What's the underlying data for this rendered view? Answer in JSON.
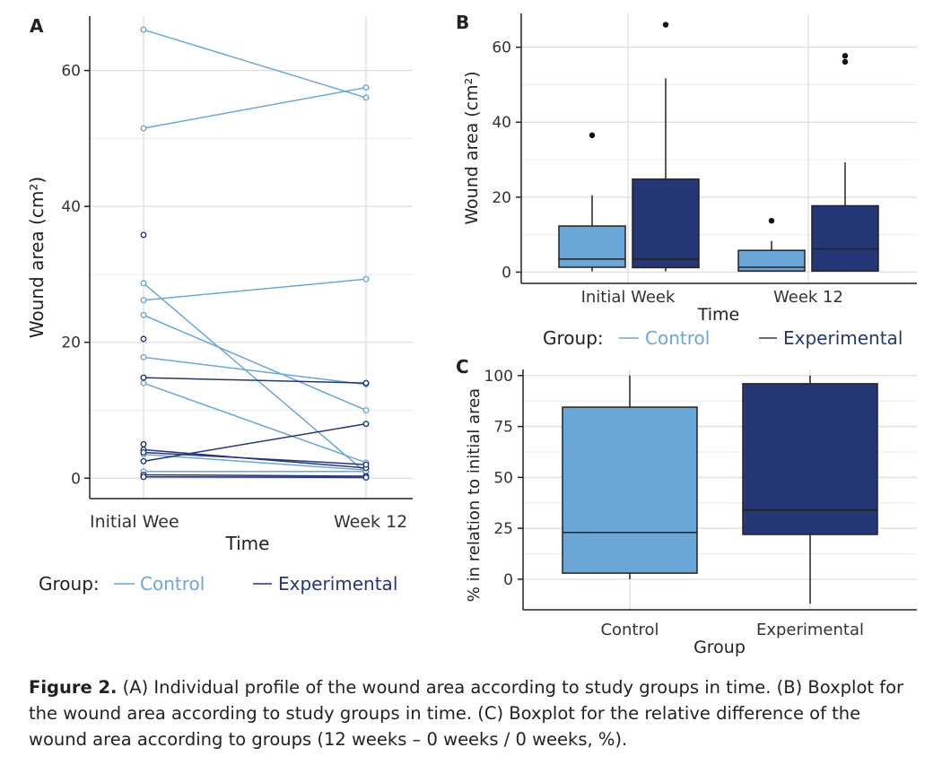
{
  "colors": {
    "control": "#6aa7d7",
    "experimental": "#263778",
    "grid": "#dcdcdc",
    "axis": "#222222",
    "point": "#111111"
  },
  "caption": {
    "label": "Figure 2.",
    "text": " (A) Individual profile of the wound area according to study groups in time. (B) Boxplot for the wound area according to study groups in time. (C) Boxplot for the relative difference of the wound area according to groups (12 weeks – 0 weeks / 0 weeks, %)."
  },
  "chart_data": [
    {
      "panel": "A",
      "type": "line",
      "xlabel": "Time",
      "ylabel": "Wound area (cm²)",
      "categories": [
        "Initial Wee",
        "Week 12"
      ],
      "ylim": [
        -3,
        68
      ],
      "yticks": [
        0,
        20,
        40,
        60
      ],
      "ytick_labels": [
        "0",
        "20",
        "40",
        "60"
      ],
      "legend": {
        "title": "Group:",
        "placement": "bottom",
        "entries": [
          "Control",
          "Experimental"
        ]
      },
      "series": [
        {
          "name": "Control",
          "lines": [
            [
              66,
              56
            ],
            [
              51.5,
              57.5
            ],
            [
              28.7,
              0.8
            ],
            [
              26.2,
              29.3
            ],
            [
              24,
              10
            ],
            [
              17.8,
              13.8
            ],
            [
              14,
              2.3
            ],
            [
              3.5,
              1.2
            ],
            [
              1,
              1
            ],
            [
              0.2,
              0.2
            ]
          ]
        },
        {
          "name": "Experimental",
          "lines": [
            [
              35.8,
              null
            ],
            [
              20.5,
              null
            ],
            [
              5,
              null
            ],
            [
              14.8,
              14
            ],
            [
              4.2,
              1.5
            ],
            [
              3.8,
              2
            ],
            [
              2.5,
              8
            ],
            [
              0.5,
              0.3
            ],
            [
              0.2,
              0.1
            ]
          ]
        }
      ]
    },
    {
      "panel": "B",
      "type": "box",
      "xlabel": "Time",
      "ylabel": "Wound area (cm²)",
      "categories": [
        "Initial Week",
        "Week 12"
      ],
      "ylim": [
        -3,
        69
      ],
      "yticks": [
        0,
        20,
        40,
        60
      ],
      "ytick_labels": [
        "0",
        "20",
        "40",
        "60"
      ],
      "legend": {
        "title": "Group:",
        "placement": "bottom",
        "entries": [
          "Control",
          "Experimental"
        ]
      },
      "boxes": [
        {
          "category": "Initial Week",
          "group": "Control",
          "whisker_low": 0.2,
          "q1": 1.3,
          "median": 3.5,
          "q3": 12.3,
          "whisker_high": 20.5,
          "outliers": [
            36.5
          ]
        },
        {
          "category": "Initial Week",
          "group": "Experimental",
          "whisker_low": 0.2,
          "q1": 1.2,
          "median": 3.5,
          "q3": 24.8,
          "whisker_high": 51.7,
          "outliers": [
            66
          ]
        },
        {
          "category": "Week 12",
          "group": "Control",
          "whisker_low": 0.1,
          "q1": 0.3,
          "median": 1.3,
          "q3": 5.8,
          "whisker_high": 8.3,
          "outliers": [
            13.7
          ]
        },
        {
          "category": "Week 12",
          "group": "Experimental",
          "whisker_low": 0.1,
          "q1": 0.3,
          "median": 6.2,
          "q3": 17.7,
          "whisker_high": 29.3,
          "outliers": [
            57.7,
            56.1
          ]
        }
      ]
    },
    {
      "panel": "C",
      "type": "box",
      "xlabel": "Group",
      "ylabel": "% in relation to initial area",
      "categories": [
        "Control",
        "Experimental"
      ],
      "ylim": [
        -15,
        103
      ],
      "yticks": [
        0,
        25,
        50,
        75,
        100
      ],
      "ytick_labels": [
        "0",
        "25",
        "50",
        "75",
        "100"
      ],
      "boxes": [
        {
          "category": "Control",
          "group": "Control",
          "whisker_low": 0,
          "q1": 3,
          "median": 23,
          "q3": 84.5,
          "whisker_high": 100,
          "outliers": []
        },
        {
          "category": "Experimental",
          "group": "Experimental",
          "whisker_low": -12,
          "q1": 22,
          "median": 34,
          "q3": 96,
          "whisker_high": 100,
          "outliers": []
        }
      ]
    }
  ]
}
